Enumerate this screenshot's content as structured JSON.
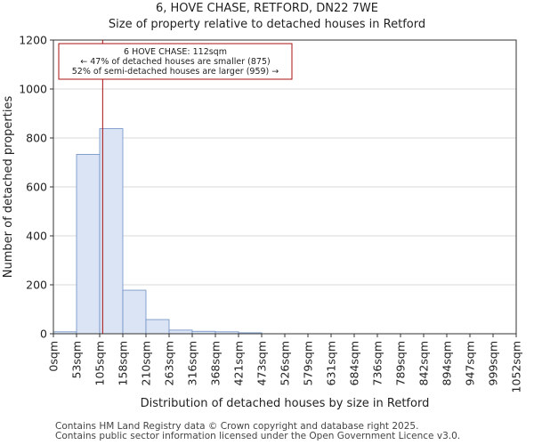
{
  "chart_data": {
    "type": "bar",
    "title": [
      "6, HOVE CHASE, RETFORD, DN22 7WE",
      "Size of property relative to detached houses in Retford"
    ],
    "xlabel": "Distribution of detached houses by size in Retford",
    "ylabel": "Number of detached properties",
    "x_ticks": [
      "0sqm",
      "53sqm",
      "105sqm",
      "158sqm",
      "210sqm",
      "263sqm",
      "316sqm",
      "368sqm",
      "421sqm",
      "473sqm",
      "526sqm",
      "579sqm",
      "631sqm",
      "684sqm",
      "736sqm",
      "789sqm",
      "842sqm",
      "894sqm",
      "947sqm",
      "999sqm",
      "1052sqm"
    ],
    "bin_edges": [
      0,
      53,
      105,
      158,
      210,
      263,
      316,
      368,
      421,
      473,
      526,
      579,
      631,
      684,
      736,
      789,
      842,
      894,
      947,
      999,
      1052
    ],
    "values": [
      8,
      733,
      838,
      178,
      58,
      15,
      10,
      8,
      4,
      0,
      0,
      0,
      0,
      0,
      0,
      0,
      0,
      0,
      0,
      0
    ],
    "y_ticks": [
      0,
      200,
      400,
      600,
      800,
      1000,
      1200
    ],
    "ylim": [
      0,
      1200
    ],
    "xlim": [
      0,
      1052
    ],
    "grid": "y",
    "bar_fill": "#dae4f5",
    "bar_edge": "#6e8fc4",
    "marker": {
      "value": 112,
      "color": "#aa1111"
    },
    "annotation": {
      "lines": [
        "6 HOVE CHASE: 112sqm",
        "← 47% of detached houses are smaller (875)",
        "52% of semi-detached houses are larger (959) →"
      ],
      "border_color": "#aa1111"
    }
  },
  "footer": {
    "line1": "Contains HM Land Registry data © Crown copyright and database right 2025.",
    "line2": "Contains public sector information licensed under the Open Government Licence v3.0."
  }
}
